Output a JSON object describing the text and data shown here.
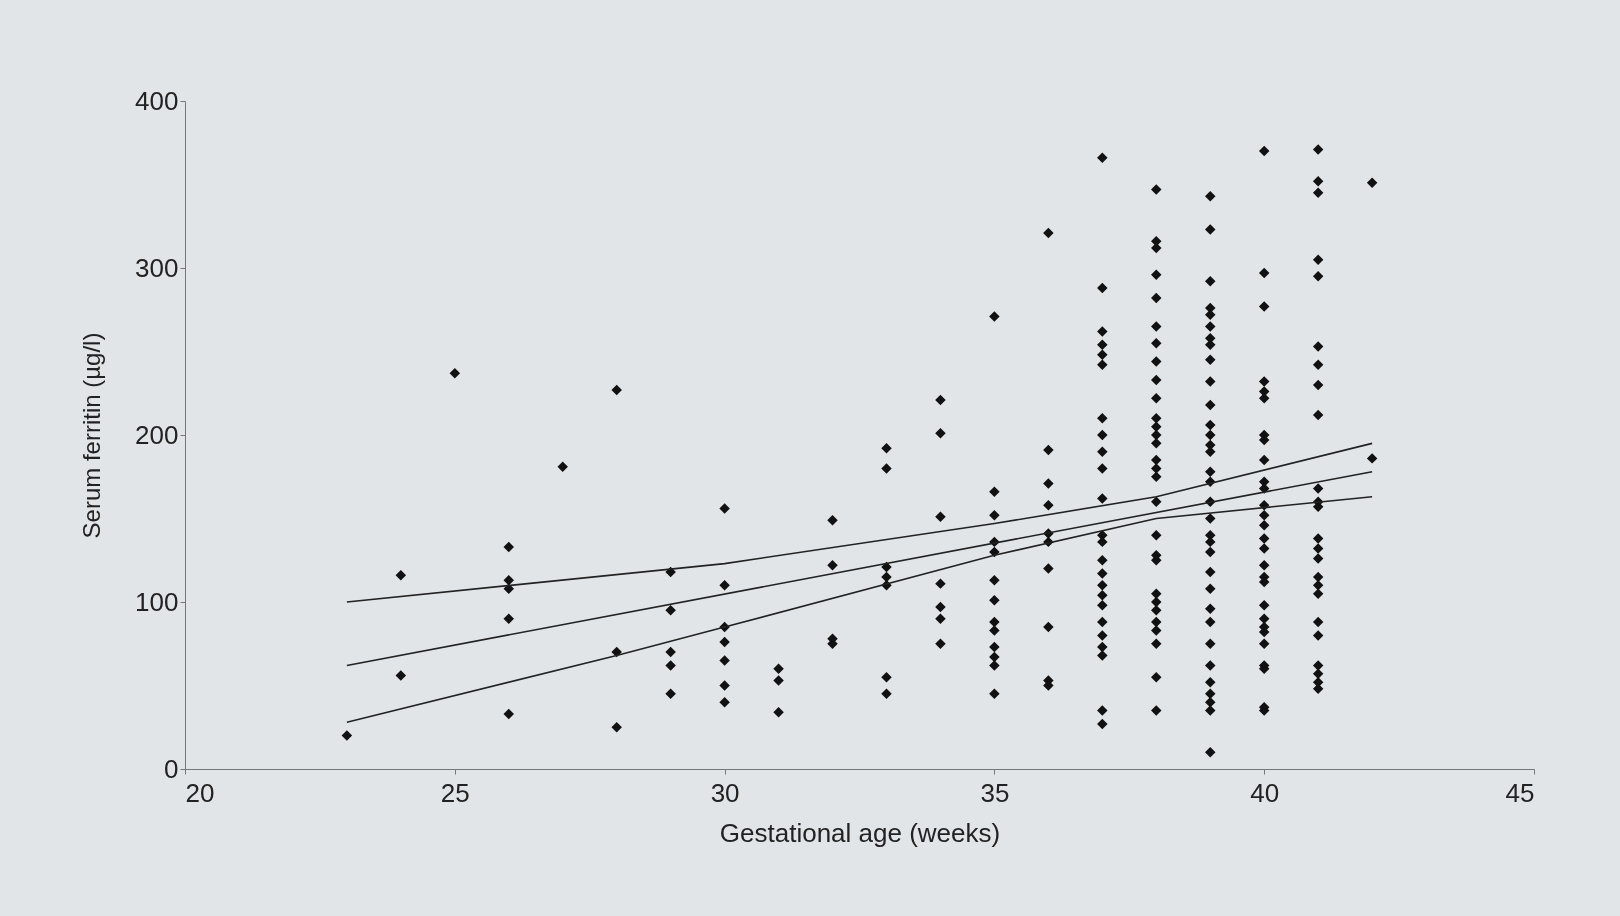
{
  "chart_data": {
    "type": "scatter",
    "xlabel": "Gestational age (weeks)",
    "ylabel": "Serum ferritin (µg/l)",
    "xlim": [
      20,
      45
    ],
    "xticks": [
      20,
      25,
      30,
      35,
      40,
      45
    ],
    "ylim": [
      0,
      400
    ],
    "yticks": [
      0,
      100,
      200,
      300,
      400
    ],
    "grid": false,
    "marker": "diamond",
    "series": [
      {
        "color": "#111111",
        "x": [
          23,
          24,
          24,
          25,
          26,
          26,
          26,
          26,
          26,
          27,
          28,
          28,
          28,
          29,
          29,
          29,
          29,
          29,
          30,
          30,
          30,
          30,
          30,
          30,
          30,
          31,
          31,
          31,
          32,
          32,
          32,
          32,
          33,
          33,
          33,
          33,
          33,
          33,
          33,
          34,
          34,
          34,
          34,
          34,
          34,
          34,
          35,
          35,
          35,
          35,
          35,
          35,
          35,
          35,
          35,
          35,
          35,
          35,
          35,
          36,
          36,
          36,
          36,
          36,
          36,
          36,
          36,
          36,
          36,
          37,
          37,
          37,
          37,
          37,
          37,
          37,
          37,
          37,
          37,
          37,
          37,
          37,
          37,
          37,
          37,
          37,
          37,
          37,
          37,
          37,
          37,
          37,
          37,
          38,
          38,
          38,
          38,
          38,
          38,
          38,
          38,
          38,
          38,
          38,
          38,
          38,
          38,
          38,
          38,
          38,
          38,
          38,
          38,
          38,
          38,
          38,
          38,
          38,
          38,
          38,
          38,
          38,
          39,
          39,
          39,
          39,
          39,
          39,
          39,
          39,
          39,
          39,
          39,
          39,
          39,
          39,
          39,
          39,
          39,
          39,
          39,
          39,
          39,
          39,
          39,
          39,
          39,
          39,
          39,
          39,
          39,
          39,
          39,
          39,
          39,
          40,
          40,
          40,
          40,
          40,
          40,
          40,
          40,
          40,
          40,
          40,
          40,
          40,
          40,
          40,
          40,
          40,
          40,
          40,
          40,
          40,
          40,
          40,
          40,
          40,
          40,
          40,
          40,
          41,
          41,
          41,
          41,
          41,
          41,
          41,
          41,
          41,
          41,
          41,
          41,
          41,
          41,
          41,
          41,
          41,
          41,
          41,
          41,
          41,
          41,
          41,
          41,
          42,
          42
        ],
        "values": [
          20,
          116,
          56,
          237,
          133,
          113,
          108,
          90,
          33,
          181,
          227,
          70,
          25,
          118,
          95,
          70,
          62,
          45,
          156,
          110,
          85,
          76,
          65,
          50,
          40,
          60,
          53,
          34,
          149,
          122,
          78,
          75,
          192,
          180,
          121,
          115,
          110,
          55,
          45,
          221,
          201,
          151,
          111,
          97,
          90,
          75,
          271,
          166,
          152,
          136,
          130,
          113,
          101,
          88,
          83,
          73,
          67,
          62,
          45,
          321,
          191,
          171,
          158,
          141,
          136,
          120,
          85,
          53,
          50,
          366,
          288,
          262,
          254,
          248,
          242,
          210,
          200,
          190,
          180,
          162,
          140,
          136,
          125,
          117,
          110,
          104,
          98,
          88,
          80,
          73,
          68,
          35,
          27,
          347,
          316,
          312,
          296,
          282,
          265,
          255,
          244,
          233,
          222,
          210,
          205,
          200,
          195,
          185,
          180,
          175,
          160,
          140,
          128,
          125,
          105,
          100,
          95,
          88,
          83,
          75,
          55,
          35,
          343,
          323,
          292,
          276,
          272,
          265,
          258,
          254,
          245,
          232,
          218,
          206,
          200,
          194,
          190,
          178,
          172,
          160,
          150,
          140,
          136,
          130,
          118,
          108,
          96,
          88,
          75,
          62,
          52,
          45,
          40,
          35,
          10,
          370,
          297,
          277,
          232,
          226,
          222,
          200,
          197,
          185,
          172,
          168,
          158,
          152,
          146,
          138,
          132,
          122,
          115,
          112,
          98,
          90,
          85,
          82,
          75,
          62,
          60,
          37,
          35,
          371,
          352,
          345,
          305,
          295,
          253,
          242,
          230,
          212,
          168,
          160,
          157,
          138,
          132,
          126,
          115,
          110,
          105,
          88,
          80,
          62,
          57,
          52,
          48,
          351,
          186
        ]
      },
      {
        "type": "line",
        "marker": "none",
        "line_style": "solid",
        "color": "#222222",
        "x": [
          23,
          30,
          35,
          38,
          42
        ],
        "values": [
          100,
          123,
          147,
          163,
          195
        ]
      },
      {
        "type": "line",
        "marker": "none",
        "line_style": "solid",
        "color": "#222222",
        "x": [
          23,
          42
        ],
        "values": [
          62,
          178
        ]
      },
      {
        "type": "line",
        "marker": "none",
        "line_style": "solid",
        "color": "#222222",
        "x": [
          23,
          28,
          30,
          35,
          38,
          42
        ],
        "values": [
          28,
          68,
          85,
          128,
          150,
          163
        ]
      }
    ]
  }
}
